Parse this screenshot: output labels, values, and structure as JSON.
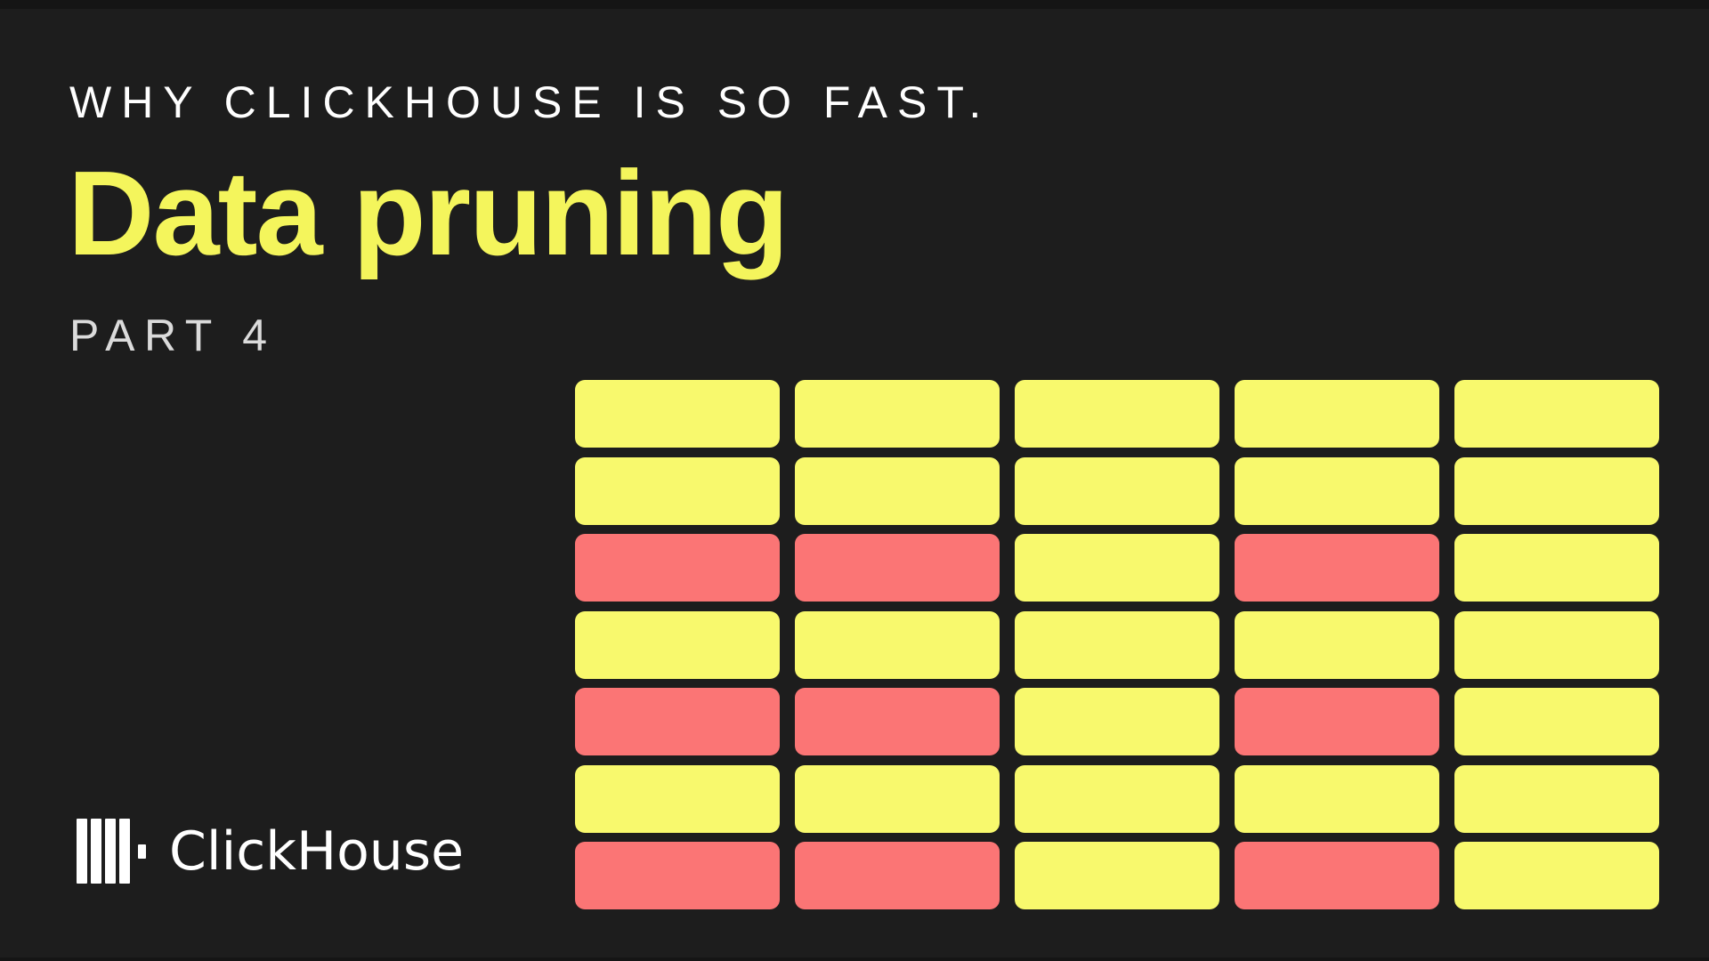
{
  "page": {
    "background": "#1d1d1d"
  },
  "colors": {
    "bg": "#1d1d1d",
    "edge-shade": "#151515",
    "title-yellow": "#f4f55c",
    "cell-yellow": "#f8f96d",
    "cell-red": "#fb7575",
    "eyebrow-white": "#ffffff",
    "part-gray": "#dbdbdb",
    "logo-white": "#ffffff"
  },
  "header": {
    "eyebrow": "WHY CLICKHOUSE IS SO FAST.",
    "title": "Data pruning",
    "part": "PART 4"
  },
  "logo": {
    "icon": "clickhouse-bars-icon",
    "text": "ClickHouse"
  },
  "grid": {
    "rows": 7,
    "columns": 5,
    "cell_colors_key": {
      "Y": "yellow",
      "R": "red"
    },
    "pattern": [
      "YYYYY",
      "YYYYY",
      "RRYRY",
      "YYYYY",
      "RRYRY",
      "YYYYY",
      "RRYRY"
    ]
  }
}
